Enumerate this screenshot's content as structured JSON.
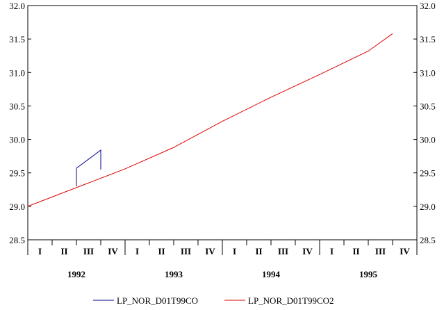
{
  "chart_data": {
    "type": "line",
    "ylim": [
      28.5,
      32.0
    ],
    "yticks": [
      "28.5",
      "29.0",
      "29.5",
      "30.0",
      "30.5",
      "31.0",
      "31.5",
      "32.0"
    ],
    "y_axis_sides": "left-and-right",
    "quarters": [
      "I",
      "II",
      "III",
      "IV",
      "I",
      "II",
      "III",
      "IV",
      "I",
      "II",
      "III",
      "IV",
      "I",
      "II",
      "III",
      "IV"
    ],
    "years": [
      "1992",
      "1993",
      "1994",
      "1995"
    ],
    "x_range": [
      "1992 Q1",
      "1995 Q4"
    ],
    "grid": false,
    "legend_position": "bottom",
    "series": [
      {
        "name": "LP_NOR_D01T99CO",
        "color": "#00008b",
        "points": [
          {
            "x": "1992 Q3",
            "y": 29.3
          },
          {
            "x": "1992 Q3",
            "y": 29.57
          },
          {
            "x": "1992 Q4",
            "y": 29.84
          },
          {
            "x": "1992 Q4",
            "y": 29.55
          }
        ]
      },
      {
        "name": "LP_NOR_D01T99CO2",
        "color": "#dd0000",
        "points": [
          {
            "x": "1992 Q1",
            "y": 29.0
          },
          {
            "x": "1992 Q3",
            "y": 29.28
          },
          {
            "x": "1993 Q1",
            "y": 29.56
          },
          {
            "x": "1993 Q3",
            "y": 29.88
          },
          {
            "x": "1994 Q1",
            "y": 30.27
          },
          {
            "x": "1994 Q3",
            "y": 30.63
          },
          {
            "x": "1995 Q1",
            "y": 30.97
          },
          {
            "x": "1995 Q3",
            "y": 31.32
          },
          {
            "x": "1995 Q4",
            "y": 31.58
          }
        ]
      }
    ]
  }
}
